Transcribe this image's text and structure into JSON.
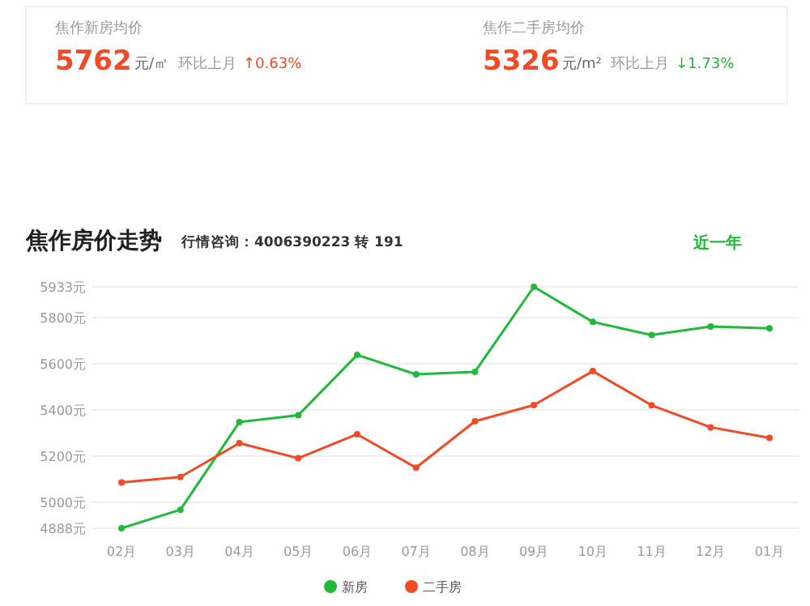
{
  "chart_data": {
    "type": "line",
    "title": "焦作房价走势",
    "subtitle": "行情咨询：4006390223 转 191",
    "annotations": [
      "焦作新房均价",
      "5762",
      "元/㎡",
      "环比上月",
      "↑0.63%",
      "焦作二手房均价",
      "5326",
      "元/m²",
      "环比上月",
      "↓1.73%",
      "近一年"
    ],
    "categories": [
      "02月",
      "03月",
      "04月",
      "05月",
      "06月",
      "07月",
      "08月",
      "09月",
      "10月",
      "11月",
      "12月",
      "01月"
    ],
    "series": [
      {
        "name": "新房",
        "color": "#22b83a",
        "values": [
          4888,
          4968,
          5347,
          5377,
          5638,
          5554,
          5565,
          5933,
          5781,
          5724,
          5761,
          5753
        ]
      },
      {
        "name": "二手房",
        "color": "#f04a26",
        "values": [
          5086,
          5110,
          5256,
          5191,
          5295,
          5150,
          5351,
          5421,
          5568,
          5420,
          5325,
          5279
        ]
      }
    ],
    "ylim": [
      4888,
      5933
    ],
    "yticks": [
      {
        "value": 4888,
        "label": "4888元"
      },
      {
        "value": 5000,
        "label": "5000元"
      },
      {
        "value": 5200,
        "label": "5200元"
      },
      {
        "value": 5400,
        "label": "5400元"
      },
      {
        "value": 5600,
        "label": "5600元"
      },
      {
        "value": 5800,
        "label": "5800元"
      },
      {
        "value": 5933,
        "label": "5933元"
      }
    ],
    "grid": "y",
    "legend": "bottom",
    "marker": "circle",
    "line_style": "solid"
  }
}
